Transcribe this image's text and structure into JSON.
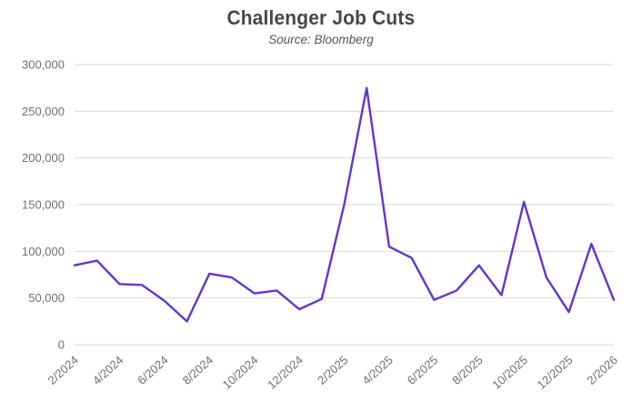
{
  "header": {
    "title": "Challenger Job Cuts",
    "subtitle": "Source: Bloomberg"
  },
  "chart_data": {
    "type": "line",
    "title": "Challenger Job Cuts",
    "subtitle": "Source: Bloomberg",
    "xlabel": "",
    "ylabel": "",
    "x": [
      "2/2024",
      "3/2024",
      "4/2024",
      "5/2024",
      "6/2024",
      "7/2024",
      "8/2024",
      "9/2024",
      "10/2024",
      "11/2024",
      "12/2024",
      "1/2025",
      "2/2025",
      "3/2025",
      "4/2025",
      "5/2025",
      "6/2025",
      "7/2025",
      "8/2025",
      "9/2025",
      "10/2025",
      "11/2025",
      "12/2025",
      "1/2026",
      "2/2026"
    ],
    "series": [
      {
        "name": "Challenger Job Cuts",
        "values": [
          85000,
          90000,
          65000,
          64000,
          47000,
          25000,
          76000,
          72000,
          55000,
          58000,
          38000,
          49000,
          150000,
          275000,
          105000,
          93000,
          48000,
          58000,
          85000,
          53000,
          153000,
          72000,
          35000,
          108000,
          48000
        ]
      }
    ],
    "x_tick_labels": [
      "2/2024",
      "4/2024",
      "6/2024",
      "8/2024",
      "10/2024",
      "12/2024",
      "2/2025",
      "4/2025",
      "6/2025",
      "8/2025",
      "10/2025",
      "12/2025",
      "2/2026"
    ],
    "y_ticks": [
      0,
      50000,
      100000,
      150000,
      200000,
      250000,
      300000
    ],
    "y_tick_labels": [
      "0",
      "50,000",
      "100,000",
      "150,000",
      "200,000",
      "250,000",
      "300,000"
    ],
    "ylim": [
      0,
      300000
    ],
    "grid": "horizontal-only",
    "legend_position": "none",
    "line_color": "#6435ce",
    "grid_color": "#d9d9d9",
    "title_color": "#474747",
    "tick_label_color": "#6f6f6f"
  }
}
